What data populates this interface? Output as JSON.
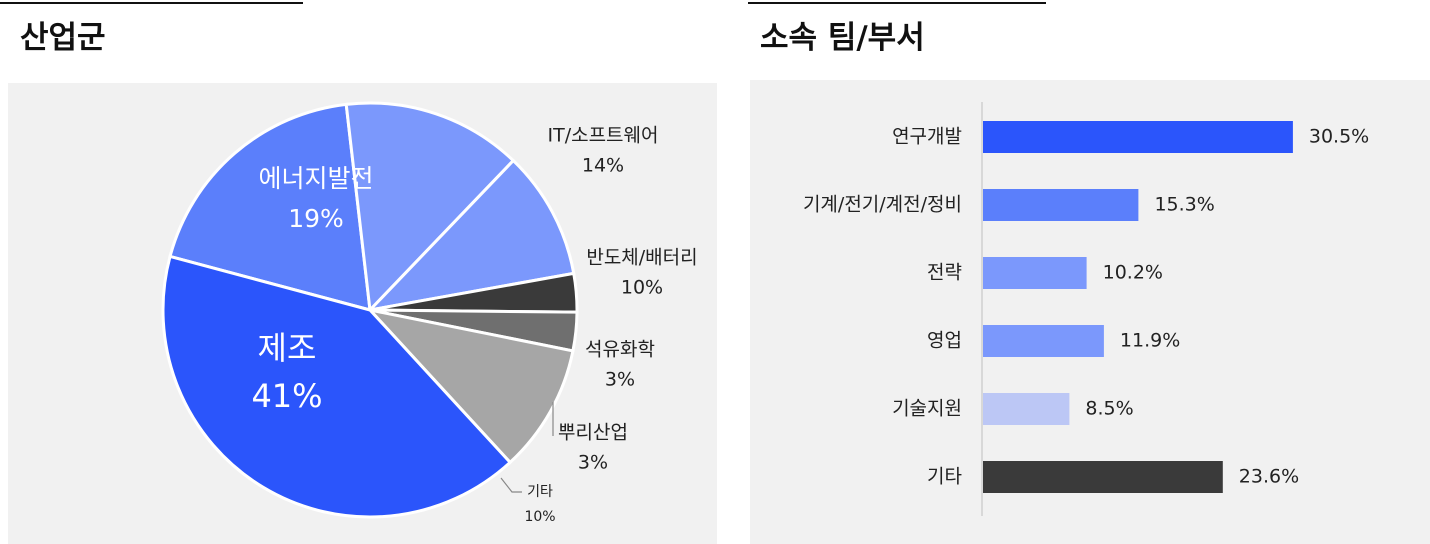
{
  "left": {
    "heading": "산업군"
  },
  "right": {
    "heading": "소속 팀/부서"
  },
  "chart_data": [
    {
      "type": "pie",
      "title": "산업군",
      "slices": [
        {
          "label": "에너지발전",
          "value_label": "19%",
          "value": 19,
          "color": "#5b7ffb"
        },
        {
          "label": "IT/소프트웨어",
          "value_label": "14%",
          "value": 14,
          "color": "#7b98fc"
        },
        {
          "label": "반도체/배터리",
          "value_label": "10%",
          "value": 10,
          "color": "#7b98fc"
        },
        {
          "label": "석유화학",
          "value_label": "3%",
          "value": 3,
          "color": "#3a3a3a"
        },
        {
          "label": "뿌리산업",
          "value_label": "3%",
          "value": 3,
          "color": "#6f6f6f"
        },
        {
          "label": "기타",
          "value_label": "10%",
          "value": 10,
          "color": "#a6a6a6"
        },
        {
          "label": "제조",
          "value_label": "41%",
          "value": 41,
          "color": "#2b55fb"
        }
      ]
    },
    {
      "type": "bar",
      "orientation": "horizontal",
      "title": "소속 팀/부서",
      "categories": [
        "연구개발",
        "기계/전기/계전/정비",
        "전략",
        "영업",
        "기술지원",
        "기타"
      ],
      "values": [
        30.5,
        15.3,
        10.2,
        11.9,
        8.5,
        23.6
      ],
      "value_labels": [
        "30.5%",
        "15.3%",
        "10.2%",
        "11.9%",
        "8.5%",
        "23.6%"
      ],
      "colors": [
        "#2b55fb",
        "#5b7ffb",
        "#7b98fc",
        "#7b98fc",
        "#bcc7f5",
        "#3a3a3a"
      ],
      "xlim": [
        0,
        32
      ]
    }
  ]
}
